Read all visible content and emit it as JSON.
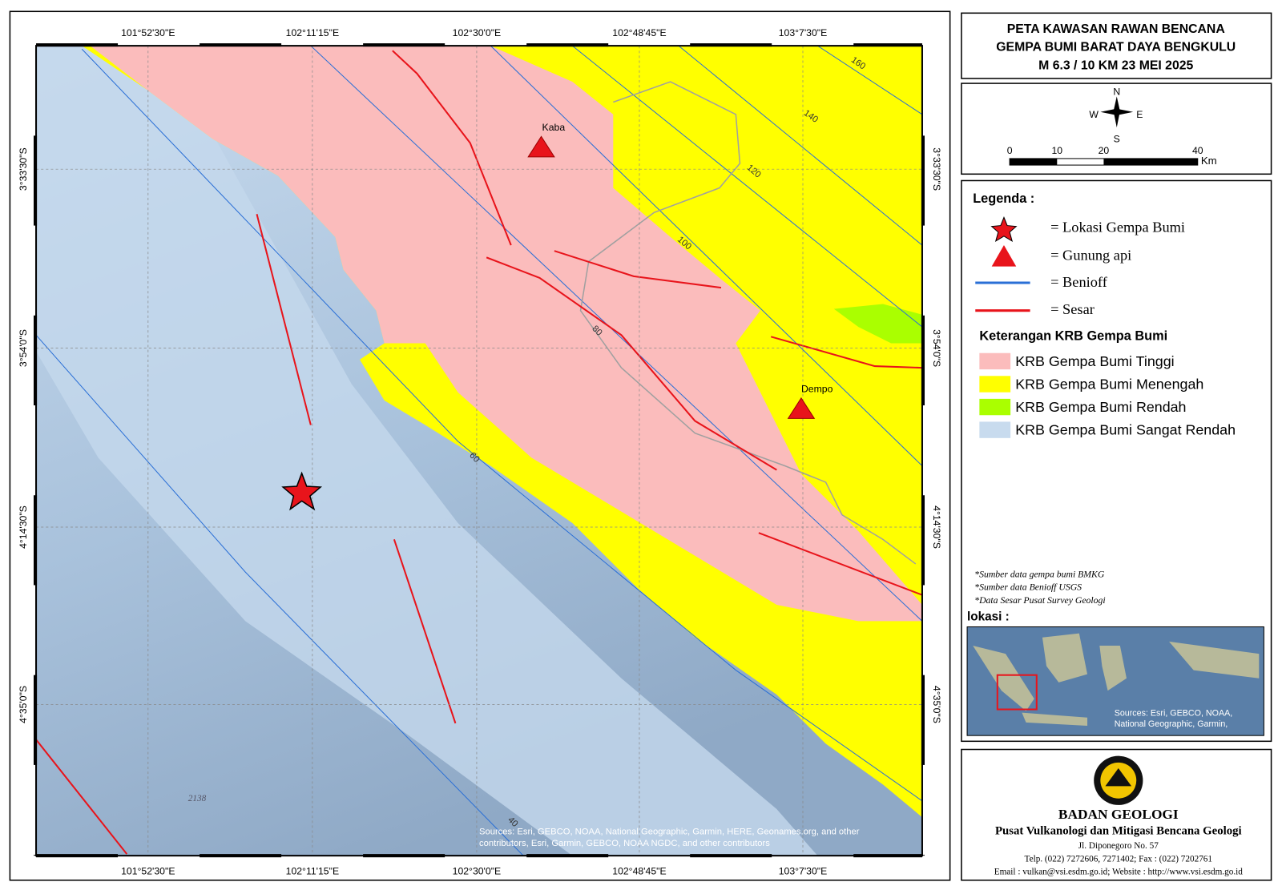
{
  "title": [
    "PETA KAWASAN RAWAN BENCANA",
    "GEMPA BUMI BARAT DAYA BENGKULU",
    "M 6.3 / 10 KM  23 MEI 2025"
  ],
  "compass": {
    "n": "N",
    "s": "S",
    "w": "W",
    "e": "E"
  },
  "scale": {
    "ticks": [
      "0",
      "10",
      "20",
      "40"
    ],
    "unit": "Km"
  },
  "legend": {
    "heading": "Legenda :",
    "items": [
      "= Lokasi Gempa Bumi",
      "= Gunung api",
      "= Benioff",
      "= Sesar"
    ],
    "krb_heading": "Keterangan KRB Gempa Bumi",
    "krb": [
      "KRB Gempa Bumi Tinggi",
      "KRB Gempa Bumi  Menengah",
      "KRB Gempa Bumi Rendah",
      "KRB Gempa Bumi Sangat Rendah"
    ]
  },
  "notes": [
    "*Sumber data gempa bumi BMKG",
    "*Sumber data Benioff USGS",
    "*Data Sesar Pusat Survey Geologi"
  ],
  "inset": {
    "label": "lokasi :",
    "source": [
      "Sources: Esri, GEBCO, NOAA,",
      "National Geographic, Garmin,"
    ]
  },
  "agency": {
    "name": "BADAN GEOLOGI",
    "unit": "Pusat Vulkanologi dan Mitigasi Bencana Geologi",
    "address": "Jl. Diponegoro No. 57",
    "phone": "Telp. (022) 7272606, 7271402; Fax : (022) 7202761",
    "contact": "Email : vulkan@vsi.esdm.go.id; Website : http://www.vsi.esdm.go.id"
  },
  "map": {
    "lon_labels": [
      "101°52'30\"E",
      "102°11'15\"E",
      "102°30'0\"E",
      "102°48'45\"E",
      "103°7'30\"E"
    ],
    "lat_labels": [
      "3°33'30\"S",
      "3°54'0\"S",
      "4°14'30\"S",
      "4°35'0\"S"
    ],
    "volcanoes": [
      "Kaba",
      "Dempo"
    ],
    "contours": [
      "160",
      "140",
      "120",
      "100",
      "80",
      "60",
      "40"
    ],
    "depth": "2138",
    "sources": [
      "Sources: Esri, GEBCO, NOAA, National Geographic, Garmin, HERE, Geonames.org, and other",
      "contributors, Esri, Garmin, GEBCO, NOAA NGDC, and other contributors"
    ]
  }
}
